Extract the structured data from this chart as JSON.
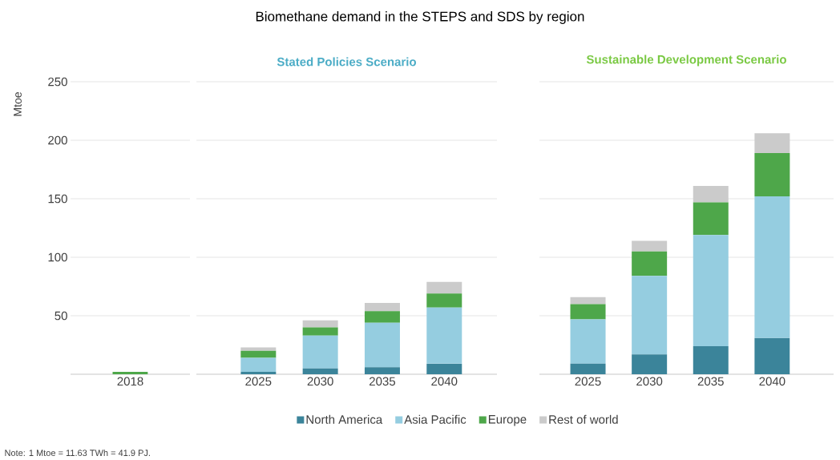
{
  "chart_data": [
    {
      "type": "bar",
      "ylabel": "Mtoe",
      "annotations": [
        "Note: 1 Mtoe = 11.63 TWh = 41.9 PJ."
      ],
      "stacked": true,
      "categories": [
        "2018"
      ],
      "ylim": [
        0,
        250
      ],
      "yticks": [
        50,
        100,
        150,
        200,
        250
      ],
      "grid": "y",
      "series": [
        {
          "color": "#4ea74a",
          "values": [
            2
          ]
        }
      ]
    },
    {
      "type": "bar",
      "title": "Biomethane demand in the STEPS and SDS by region",
      "subtitle": "Stated Policies Scenario",
      "stacked": true,
      "categories": [
        "2025",
        "2030",
        "2035",
        "2040"
      ],
      "ylim": [
        0,
        250
      ],
      "yticks": [
        50,
        100,
        150,
        200,
        250
      ],
      "grid": "y",
      "tick_labels": "x",
      "legend": "bottom",
      "series": [
        {
          "name": "North America",
          "color": "#3b849a",
          "values": [
            2,
            5,
            6,
            9
          ]
        },
        {
          "name": "Asia Pacific",
          "color": "#95cde0",
          "values": [
            12,
            28,
            38,
            48
          ]
        },
        {
          "name": "Europe",
          "color": "#4ea74a",
          "values": [
            6,
            7,
            10,
            12
          ]
        },
        {
          "name": "Rest of world",
          "color": "#cbcbcb",
          "values": [
            3,
            6,
            7,
            10
          ]
        }
      ]
    },
    {
      "type": "bar",
      "title": "Sustainable Development Scenario",
      "stacked": true,
      "categories": [
        "2025",
        "2030",
        "2035",
        "2040"
      ],
      "ylim": [
        0,
        250
      ],
      "yticks": [
        50,
        100,
        150,
        200,
        250
      ],
      "grid": "y",
      "tick_labels": "x",
      "series": [
        {
          "color": "#3b849a",
          "values": [
            9,
            17,
            24,
            31
          ]
        },
        {
          "color": "#95cde0",
          "values": [
            38,
            67,
            95,
            121
          ]
        },
        {
          "color": "#4ea74a",
          "values": [
            13,
            21,
            28,
            37
          ]
        },
        {
          "color": "#cbcbcb",
          "values": [
            6,
            9,
            14,
            17
          ]
        }
      ]
    }
  ]
}
